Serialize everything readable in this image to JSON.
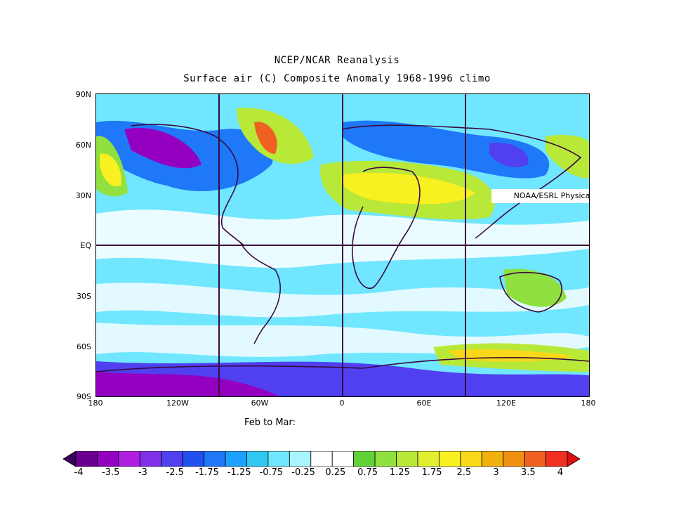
{
  "title": "NCEP/NCAR Reanalysis",
  "subtitle": "Surface air (C) Composite Anomaly 1968-1996 climo",
  "credit": "NOAA/ESRL Physical Sciences Division",
  "period": "Feb to Mar:",
  "lat_ticks": [
    "90N",
    "60N",
    "30N",
    "EQ",
    "30S",
    "60S",
    "90S"
  ],
  "lon_ticks": [
    "180",
    "120W",
    "60W",
    "0",
    "60E",
    "120E",
    "180"
  ],
  "colorbar": {
    "labels": [
      "-4",
      "-3.5",
      "-3",
      "-2.5",
      "-1.75",
      "-1.25",
      "-0.75",
      "-0.25",
      "0.25",
      "0.75",
      "1.25",
      "1.75",
      "2.5",
      "3",
      "3.5",
      "4"
    ],
    "colors": [
      "#3a0060",
      "#6a0090",
      "#9400c0",
      "#b020e0",
      "#8030e8",
      "#5040f0",
      "#2050f0",
      "#1e78f8",
      "#1ea0ff",
      "#30c8f0",
      "#70e6ff",
      "#a8f4ff",
      "#ffffff",
      "#ffffff",
      "#60d238",
      "#90e040",
      "#b8e838",
      "#e0f030",
      "#f8f020",
      "#f8d818",
      "#f0b010",
      "#f09010",
      "#f06020",
      "#f03020",
      "#e01010"
    ]
  },
  "colors": {
    "ocean_base": "#70e6ff",
    "warm": "#f8f020",
    "cold": "#5040f0",
    "coast": "#3a0a40"
  }
}
